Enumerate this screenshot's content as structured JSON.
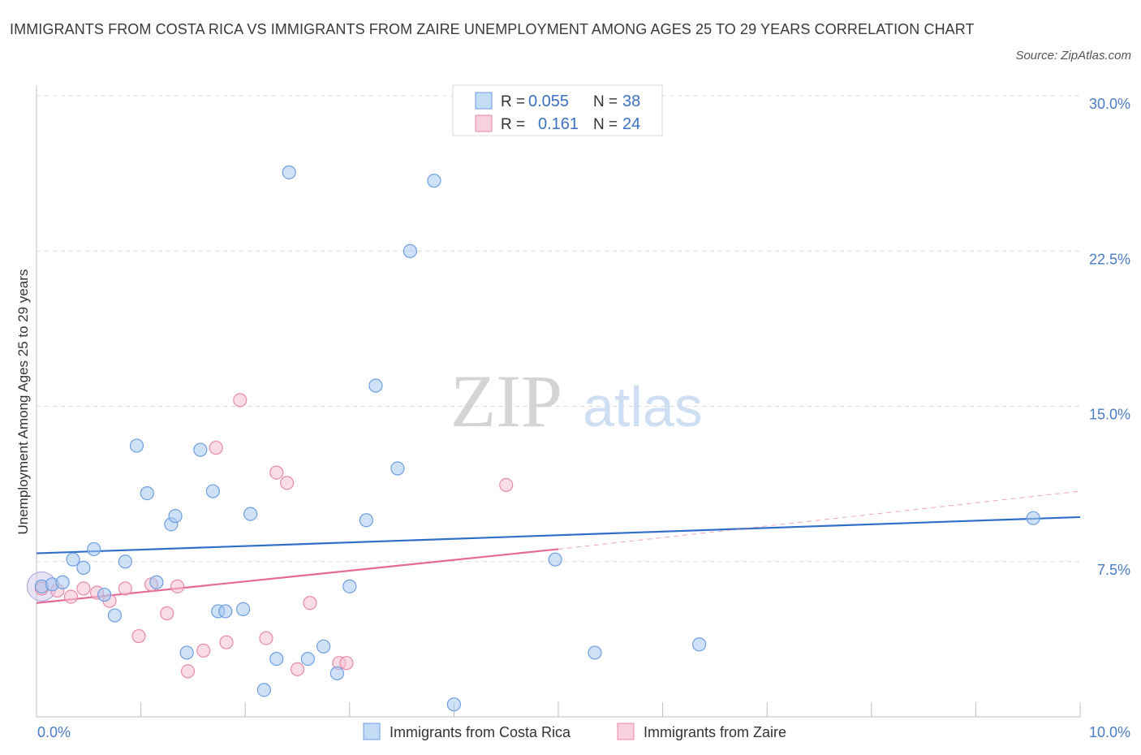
{
  "title": "IMMIGRANTS FROM COSTA RICA VS IMMIGRANTS FROM ZAIRE UNEMPLOYMENT AMONG AGES 25 TO 29 YEARS CORRELATION CHART",
  "source": "Source: ZipAtlas.com",
  "watermark": {
    "zip": "ZIP",
    "atlas": "atlas"
  },
  "chart_data": {
    "type": "scatter",
    "title": "IMMIGRANTS FROM COSTA RICA VS IMMIGRANTS FROM ZAIRE UNEMPLOYMENT AMONG AGES 25 TO 29 YEARS CORRELATION CHART",
    "xlabel": "",
    "ylabel": "Unemployment Among Ages 25 to 29 years",
    "xlim": [
      0,
      10
    ],
    "ylim": [
      0,
      30
    ],
    "x_tick_labels": {
      "min": "0.0%",
      "max": "10.0%"
    },
    "y_ticks": [
      {
        "value": 7.5,
        "label": "7.5%"
      },
      {
        "value": 15,
        "label": "15.0%"
      },
      {
        "value": 22.5,
        "label": "22.5%"
      },
      {
        "value": 30,
        "label": "30.0%"
      }
    ],
    "legend": {
      "r_label": "R =",
      "n_label": "N =",
      "entries": [
        {
          "r": "0.055",
          "n": "38"
        },
        {
          "r": "0.161",
          "n": "24"
        }
      ]
    },
    "series": [
      {
        "name": "Immigrants from Costa Rica",
        "color": "#a8c8f0",
        "stroke": "#6d9ee0",
        "line_color": "#2f6fc8",
        "trend": {
          "x0": 0,
          "y0": 7.9,
          "x1": 10,
          "y1": 9.65
        },
        "points": [
          {
            "x": 0.05,
            "y": 6.3
          },
          {
            "x": 0.15,
            "y": 6.4
          },
          {
            "x": 0.25,
            "y": 6.5
          },
          {
            "x": 0.35,
            "y": 7.6
          },
          {
            "x": 0.45,
            "y": 7.2
          },
          {
            "x": 0.55,
            "y": 8.1
          },
          {
            "x": 0.65,
            "y": 5.9
          },
          {
            "x": 0.75,
            "y": 4.9
          },
          {
            "x": 0.85,
            "y": 7.5
          },
          {
            "x": 0.96,
            "y": 13.1
          },
          {
            "x": 1.06,
            "y": 10.8
          },
          {
            "x": 1.15,
            "y": 6.5
          },
          {
            "x": 1.29,
            "y": 9.3
          },
          {
            "x": 1.33,
            "y": 9.7
          },
          {
            "x": 1.44,
            "y": 3.1
          },
          {
            "x": 1.57,
            "y": 12.9
          },
          {
            "x": 1.69,
            "y": 10.9
          },
          {
            "x": 1.74,
            "y": 5.1
          },
          {
            "x": 1.81,
            "y": 5.1
          },
          {
            "x": 1.98,
            "y": 5.2
          },
          {
            "x": 2.05,
            "y": 9.8
          },
          {
            "x": 2.18,
            "y": 1.3
          },
          {
            "x": 2.3,
            "y": 2.8
          },
          {
            "x": 2.42,
            "y": 26.3
          },
          {
            "x": 2.6,
            "y": 2.8
          },
          {
            "x": 2.75,
            "y": 3.4
          },
          {
            "x": 2.88,
            "y": 2.1
          },
          {
            "x": 3.0,
            "y": 6.3
          },
          {
            "x": 3.16,
            "y": 9.5
          },
          {
            "x": 3.25,
            "y": 16.0
          },
          {
            "x": 3.46,
            "y": 12.0
          },
          {
            "x": 3.58,
            "y": 22.5
          },
          {
            "x": 3.81,
            "y": 25.9
          },
          {
            "x": 4.0,
            "y": 0.6
          },
          {
            "x": 4.97,
            "y": 7.6
          },
          {
            "x": 5.35,
            "y": 3.1
          },
          {
            "x": 6.35,
            "y": 3.5
          },
          {
            "x": 9.55,
            "y": 9.6
          }
        ]
      },
      {
        "name": "Immigrants from Zaire",
        "color": "#f6bfd0",
        "stroke": "#e88aa8",
        "line_color": "#e56a96",
        "trend": {
          "x0": 0,
          "y0": 5.5,
          "x1": 5.0,
          "y1": 8.1
        },
        "trend_dashed": {
          "x0": 5.0,
          "y0": 8.1,
          "x1": 10,
          "y1": 10.9
        },
        "points": [
          {
            "x": 0.05,
            "y": 6.2
          },
          {
            "x": 0.2,
            "y": 6.1
          },
          {
            "x": 0.33,
            "y": 5.8
          },
          {
            "x": 0.45,
            "y": 6.2
          },
          {
            "x": 0.58,
            "y": 6.0
          },
          {
            "x": 0.7,
            "y": 5.6
          },
          {
            "x": 0.85,
            "y": 6.2
          },
          {
            "x": 0.98,
            "y": 3.9
          },
          {
            "x": 1.1,
            "y": 6.4
          },
          {
            "x": 1.25,
            "y": 5.0
          },
          {
            "x": 1.35,
            "y": 6.3
          },
          {
            "x": 1.45,
            "y": 2.2
          },
          {
            "x": 1.6,
            "y": 3.2
          },
          {
            "x": 1.72,
            "y": 13.0
          },
          {
            "x": 1.82,
            "y": 3.6
          },
          {
            "x": 1.95,
            "y": 15.3
          },
          {
            "x": 2.2,
            "y": 3.8
          },
          {
            "x": 2.3,
            "y": 11.8
          },
          {
            "x": 2.4,
            "y": 11.3
          },
          {
            "x": 2.5,
            "y": 2.3
          },
          {
            "x": 2.62,
            "y": 5.5
          },
          {
            "x": 2.9,
            "y": 2.6
          },
          {
            "x": 2.97,
            "y": 2.6
          },
          {
            "x": 4.5,
            "y": 11.2
          }
        ]
      }
    ]
  }
}
